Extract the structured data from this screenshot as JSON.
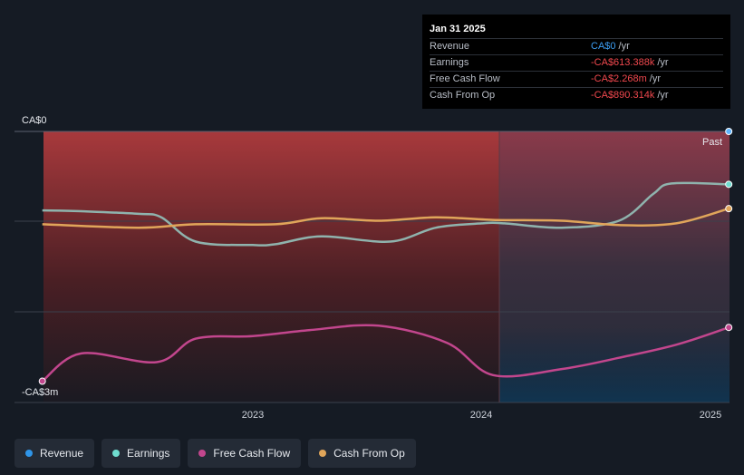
{
  "tooltip": {
    "date": "Jan 31 2025",
    "rows": [
      {
        "label": "Revenue",
        "value": "CA$0",
        "unit": "/yr",
        "color": "#3b9cf0"
      },
      {
        "label": "Earnings",
        "value": "-CA$613.388k",
        "unit": "/yr",
        "color": "#f0484e"
      },
      {
        "label": "Free Cash Flow",
        "value": "-CA$2.268m",
        "unit": "/yr",
        "color": "#f0484e"
      },
      {
        "label": "Cash From Op",
        "value": "-CA$890.314k",
        "unit": "/yr",
        "color": "#f0484e"
      }
    ]
  },
  "legend": [
    {
      "label": "Revenue",
      "color": "#2f95e8"
    },
    {
      "label": "Earnings",
      "color": "#6fdccf"
    },
    {
      "label": "Free Cash Flow",
      "color": "#c2468d"
    },
    {
      "label": "Cash From Op",
      "color": "#e0a55a"
    }
  ],
  "chart_data": {
    "type": "line",
    "y_top_label": "CA$0",
    "y_bottom_label": "-CA$3m",
    "ylim": [
      -3.0,
      0.0
    ],
    "x_ticks": [
      "2023",
      "2024",
      "2025"
    ],
    "past_label": "Past",
    "series": [
      {
        "name": "Revenue",
        "color": "#2f95e8",
        "x": [
          2022.08,
          2025.08
        ],
        "y": [
          0,
          0
        ]
      },
      {
        "name": "Earnings",
        "color": "#8fb3ad",
        "x": [
          2022.08,
          2022.25,
          2022.5,
          2022.6,
          2022.75,
          2023.0,
          2023.1,
          2023.3,
          2023.6,
          2023.8,
          2024.0,
          2024.1,
          2024.35,
          2024.6,
          2024.75,
          2024.83,
          2025.08
        ],
        "y": [
          -0.91,
          -0.92,
          -0.95,
          -0.99,
          -1.27,
          -1.31,
          -1.3,
          -1.21,
          -1.27,
          -1.11,
          -1.06,
          -1.06,
          -1.11,
          -1.03,
          -0.72,
          -0.6,
          -0.61
        ]
      },
      {
        "name": "Free Cash Flow",
        "color": "#c2468d",
        "x": [
          2022.08,
          2022.25,
          2022.58,
          2022.75,
          2023.0,
          2023.25,
          2023.55,
          2023.85,
          2024.05,
          2024.35,
          2024.6,
          2024.85,
          2025.08
        ],
        "y": [
          -2.88,
          -2.56,
          -2.66,
          -2.39,
          -2.36,
          -2.29,
          -2.24,
          -2.44,
          -2.81,
          -2.74,
          -2.61,
          -2.46,
          -2.26
        ]
      },
      {
        "name": "Cash From Op",
        "color": "#e0a55a",
        "x": [
          2022.08,
          2022.5,
          2022.75,
          2023.1,
          2023.3,
          2023.55,
          2023.8,
          2024.05,
          2024.35,
          2024.6,
          2024.85,
          2025.08
        ],
        "y": [
          -1.07,
          -1.11,
          -1.07,
          -1.07,
          -1.0,
          -1.03,
          -0.99,
          -1.02,
          -1.03,
          -1.08,
          -1.06,
          -0.89
        ]
      }
    ]
  }
}
